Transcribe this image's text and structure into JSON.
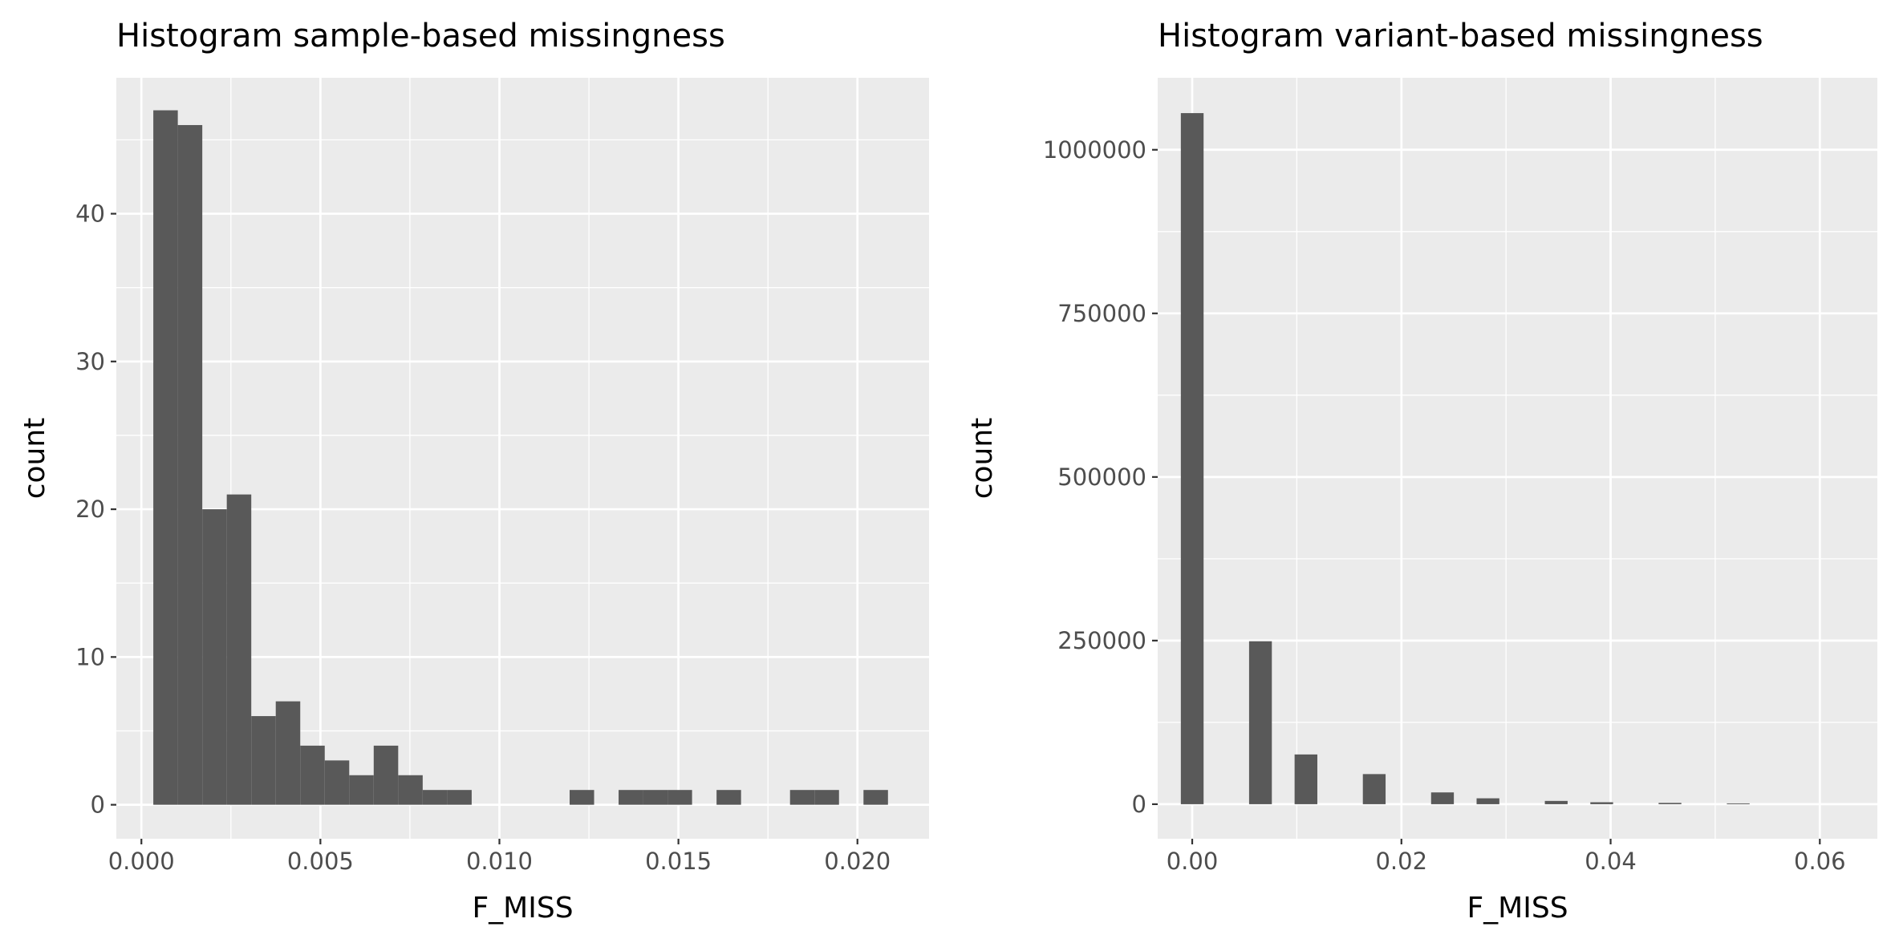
{
  "chart_data": [
    {
      "type": "bar",
      "title": "Histogram sample-based missingness",
      "xlabel": "F_MISS",
      "ylabel": "count",
      "xlim": [
        -0.0007,
        0.022
      ],
      "ylim": [
        -2.3,
        49.2
      ],
      "x_ticks": [
        0.0,
        0.005,
        0.01,
        0.015,
        0.02
      ],
      "x_tick_labels": [
        "0.000",
        "0.005",
        "0.010",
        "0.015",
        "0.020"
      ],
      "y_ticks": [
        0,
        10,
        20,
        30,
        40
      ],
      "y_tick_labels": [
        "0",
        "10",
        "20",
        "30",
        "40"
      ],
      "grid": true,
      "bin_width": 0.000684,
      "bin_centers": [
        0.000675,
        0.001359,
        0.002043,
        0.002727,
        0.003411,
        0.004095,
        0.004779,
        0.005463,
        0.006147,
        0.006831,
        0.007515,
        0.008199,
        0.008883,
        0.009567,
        0.010251,
        0.010935,
        0.011619,
        0.012303,
        0.012987,
        0.013671,
        0.014355,
        0.015039,
        0.015723,
        0.016407,
        0.017091,
        0.017775,
        0.018459,
        0.019143,
        0.019827,
        0.020511
      ],
      "values": [
        47,
        46,
        20,
        21,
        6,
        7,
        4,
        3,
        2,
        4,
        2,
        1,
        1,
        0,
        0,
        0,
        0,
        1,
        0,
        1,
        1,
        1,
        0,
        1,
        0,
        0,
        1,
        1,
        0,
        1
      ]
    },
    {
      "type": "bar",
      "title": "Histogram variant-based missingness",
      "xlabel": "F_MISS",
      "ylabel": "count",
      "xlim": [
        -0.0033,
        0.0655
      ],
      "ylim": [
        -52800,
        1110000
      ],
      "x_ticks": [
        0.0,
        0.02,
        0.04,
        0.06
      ],
      "x_tick_labels": [
        "0.00",
        "0.02",
        "0.04",
        "0.06"
      ],
      "y_ticks": [
        0,
        250000,
        500000,
        750000,
        1000000
      ],
      "y_tick_labels": [
        "0",
        "250000",
        "500000",
        "750000",
        "1000000"
      ],
      "grid": true,
      "bin_width": 0.002175,
      "bin_centers": [
        0.0,
        0.002175,
        0.00435,
        0.006525,
        0.0087,
        0.010875,
        0.01305,
        0.015225,
        0.0174,
        0.019575,
        0.02175,
        0.023925,
        0.0261,
        0.028275,
        0.03045,
        0.032625,
        0.0348,
        0.036975,
        0.03915,
        0.041325,
        0.0435,
        0.045675,
        0.04785,
        0.050025,
        0.0522,
        0.054375,
        0.05655,
        0.058725,
        0.0609,
        0.063075
      ],
      "values": [
        1056000,
        0,
        0,
        249000,
        0,
        76000,
        0,
        0,
        46000,
        0,
        0,
        18000,
        0,
        9000,
        0,
        0,
        5000,
        0,
        3000,
        0,
        0,
        2000,
        0,
        0,
        900,
        0,
        0,
        0,
        0,
        0
      ]
    }
  ]
}
